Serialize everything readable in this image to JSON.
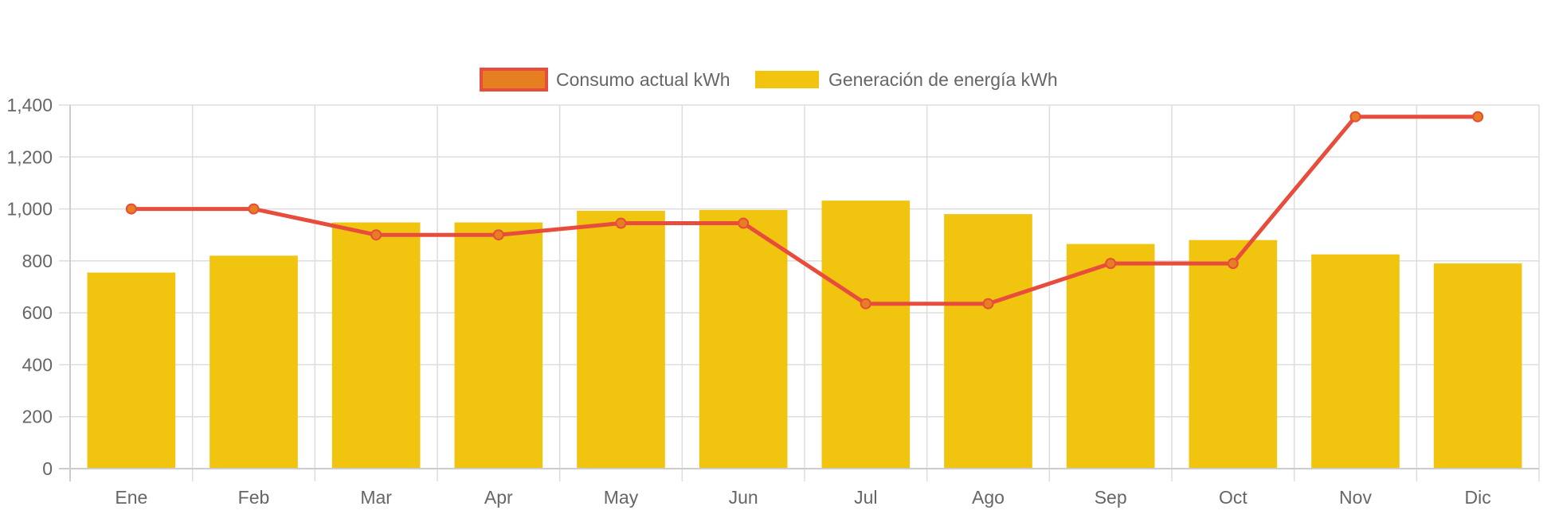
{
  "chart_data": {
    "type": "bar",
    "title": "",
    "xlabel": "",
    "ylabel": "",
    "categories": [
      "Ene",
      "Feb",
      "Mar",
      "Apr",
      "May",
      "Jun",
      "Jul",
      "Ago",
      "Sep",
      "Oct",
      "Nov",
      "Dic"
    ],
    "ylim": [
      0,
      1400
    ],
    "yticks": [
      0,
      200,
      400,
      600,
      800,
      1000,
      1200,
      1400
    ],
    "ytick_labels": [
      "0",
      "200",
      "400",
      "600",
      "800",
      "1,000",
      "1,200",
      "1,400"
    ],
    "grid": true,
    "legend_position": "top-center",
    "series": [
      {
        "name": "Consumo actual kWh",
        "type": "line",
        "color": "#e74c3c",
        "point_color": "#e67e22",
        "values": [
          1000,
          1000,
          900,
          900,
          945,
          945,
          635,
          635,
          790,
          790,
          1355,
          1355
        ]
      },
      {
        "name": "Generación de energía kWh",
        "type": "bar",
        "color": "#f1c40f",
        "values": [
          755,
          820,
          948,
          948,
          993,
          996,
          1032,
          980,
          865,
          880,
          825,
          790
        ]
      }
    ]
  }
}
